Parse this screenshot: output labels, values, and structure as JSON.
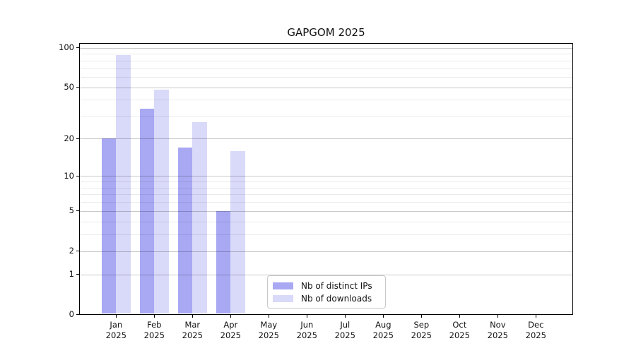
{
  "figure": {
    "title": "GAPGOM 2025"
  },
  "chart_data": {
    "type": "bar",
    "title": "GAPGOM 2025",
    "categories": [
      "Jan",
      "Feb",
      "Mar",
      "Apr",
      "May",
      "Jun",
      "Jul",
      "Aug",
      "Sep",
      "Oct",
      "Nov",
      "Dec"
    ],
    "x_year_label": "2025",
    "series": [
      {
        "name": "Nb of distinct IPs",
        "color": "#a8a8f3",
        "values": [
          20,
          34,
          17,
          5,
          0,
          0,
          0,
          0,
          0,
          0,
          0,
          0
        ]
      },
      {
        "name": "Nb of downloads",
        "color": "#d9d9f9",
        "values": [
          88,
          48,
          27,
          16,
          0,
          0,
          0,
          0,
          0,
          0,
          0,
          0
        ]
      }
    ],
    "yscale": "log1p",
    "ylim": [
      0,
      110
    ],
    "yticks_major": [
      0,
      1,
      2,
      5,
      10,
      20,
      50,
      100
    ],
    "yticks_minor": [
      3,
      4,
      6,
      7,
      8,
      9,
      30,
      40,
      60,
      70,
      80,
      90
    ],
    "grid": "horizontal",
    "legend": {
      "position": "lower-center",
      "entries": [
        "Nb of distinct IPs",
        "Nb of downloads"
      ]
    }
  }
}
